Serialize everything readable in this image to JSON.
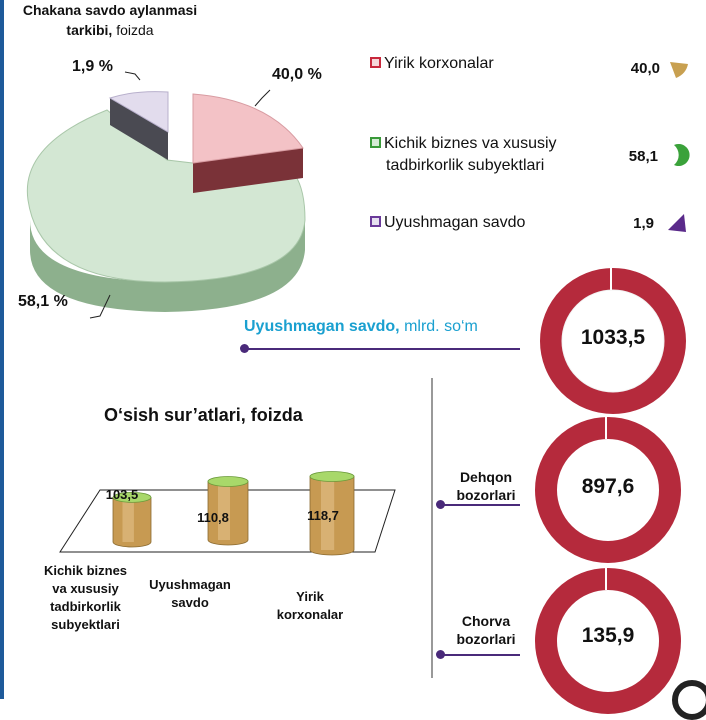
{
  "pie": {
    "title": "Chakana savdo aylanmasi",
    "title2": "tarkibi,",
    "unit": "foizda",
    "labels": {
      "large": "40,0 %",
      "small": "1,9 %",
      "green": "58,1 %"
    }
  },
  "legend": [
    {
      "label": "Yirik korxonalar",
      "value": "40,0",
      "color": "#c8283c"
    },
    {
      "label_line1": "Kichik biznes va xususiy",
      "label_line2": "tadbirkorlik subyektlari",
      "value": "58,1",
      "color": "#3a9a3a"
    },
    {
      "label": "Uyushmagan savdo",
      "value": "1,9",
      "color": "#6a3a9a"
    }
  ],
  "legend_icons": [
    "leaf-shape-icon",
    "crescent-icon",
    "triangle-icon"
  ],
  "uyushmagan": {
    "title": "Uyushmagan savdo,",
    "unit": "mlrd. so‘m",
    "value": "1033,5"
  },
  "dehqon": {
    "line1": "Dehqon",
    "line2": "bozorlari",
    "value": "897,6"
  },
  "chorva": {
    "line1": "Chorva",
    "line2": "bozorlari",
    "value": "135,9"
  },
  "growth": {
    "title": "O‘sish sur’atlari, foizda"
  },
  "chart_data": [
    {
      "type": "pie",
      "title": "Chakana savdo aylanmasi tarkibi, foizda",
      "categories": [
        "Yirik korxonalar",
        "Kichik biznes va xususiy tadbirkorlik subyektlari",
        "Uyushmagan savdo"
      ],
      "values": [
        40.0,
        58.1,
        1.9
      ],
      "colors": [
        "#f0b8bc",
        "#cfe6cf",
        "#dcd6ea"
      ]
    },
    {
      "type": "bar",
      "title": "O‘sish sur’atlari, foizda",
      "categories": [
        "Kichik biznes va xususiy tadbirkorlik subyektlari",
        "Uyushmagan savdo",
        "Yirik korxonalar"
      ],
      "values": [
        103.5,
        110.8,
        118.7
      ],
      "value_labels": [
        "103,5",
        "110,8",
        "118,7"
      ],
      "category_lines": [
        [
          "Kichik biznes",
          "va xususiy",
          "tadbirkorlik",
          "subyektlari"
        ],
        [
          "Uyushmagan",
          "savdo"
        ],
        [
          "Yirik",
          "korxonalar"
        ]
      ]
    }
  ],
  "colors": {
    "ring": "#b52a3c",
    "accent_blue": "#1aa0d0",
    "axis_purple": "#4a2a7a"
  }
}
